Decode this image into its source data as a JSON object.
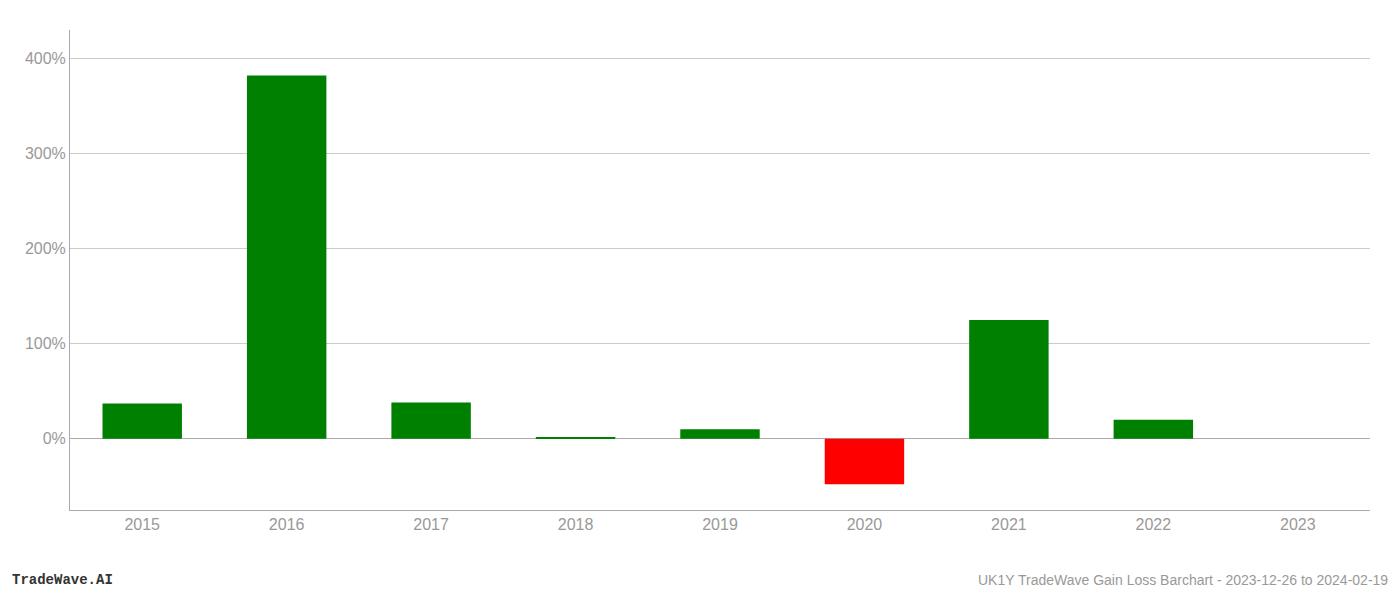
{
  "chart_data": {
    "type": "bar",
    "categories": [
      "2015",
      "2016",
      "2017",
      "2018",
      "2019",
      "2020",
      "2021",
      "2022",
      "2023"
    ],
    "values": [
      37,
      382,
      38,
      1.5,
      10,
      -48,
      125,
      20,
      0
    ],
    "colors": [
      "#008000",
      "#008000",
      "#008000",
      "#008000",
      "#008000",
      "#ff0000",
      "#008000",
      "#008000",
      "#008000"
    ],
    "ylim": [
      -75,
      430
    ],
    "yticks": [
      {
        "value": 0,
        "label": "0%"
      },
      {
        "value": 100,
        "label": "100%"
      },
      {
        "value": 200,
        "label": "200%"
      },
      {
        "value": 300,
        "label": "300%"
      },
      {
        "value": 400,
        "label": "400%"
      }
    ],
    "grid": true,
    "annotations": [
      "TradeWave.AI",
      "UK1Y TradeWave Gain Loss Barchart - 2023-12-26 to 2024-02-19"
    ]
  }
}
